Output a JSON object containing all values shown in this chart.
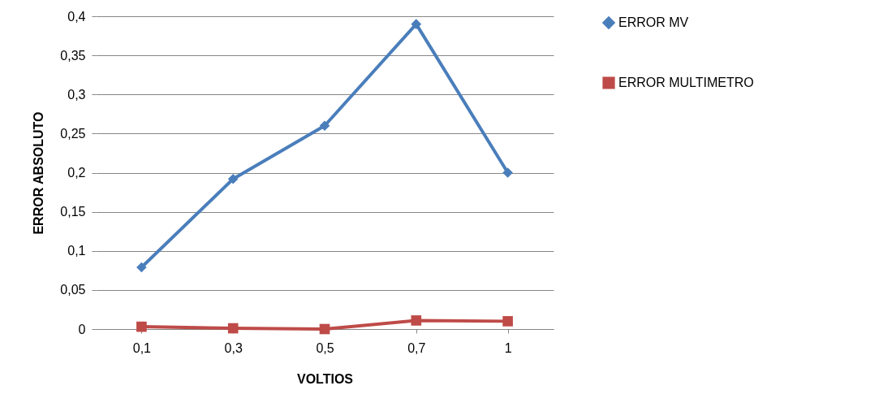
{
  "chart_data": {
    "type": "line",
    "xlabel": "VOLTIOS",
    "ylabel": "ERROR ABSOLUTO",
    "categories": [
      "0,1",
      "0,3",
      "0,5",
      "0,7",
      "1"
    ],
    "series": [
      {
        "name": "ERROR MV",
        "color": "#4a7ebb",
        "marker": "diamond",
        "values": [
          0.079,
          0.192,
          0.26,
          0.39,
          0.2
        ]
      },
      {
        "name": "ERROR MULTIMETRO",
        "color": "#be4b48",
        "marker": "square",
        "values": [
          0.003,
          0.001,
          0,
          0.011,
          0.01
        ]
      }
    ],
    "ylim": [
      0,
      0.4
    ],
    "yticks": [
      0,
      {
        "value": 0.05,
        "label": "0,05"
      },
      {
        "value": 0.1,
        "label": "0,1"
      },
      {
        "value": 0.15,
        "label": "0,15"
      },
      {
        "value": 0.2,
        "label": "0,2"
      },
      {
        "value": 0.25,
        "label": "0,25"
      },
      {
        "value": 0.3,
        "label": "0,3"
      },
      {
        "value": 0.35,
        "label": "0,35"
      },
      {
        "value": 0.4,
        "label": "0,4"
      }
    ],
    "grid": "y",
    "legend": "right",
    "line_style": "solid"
  }
}
